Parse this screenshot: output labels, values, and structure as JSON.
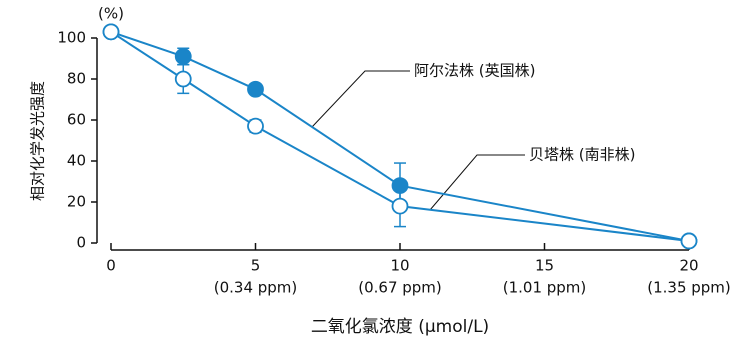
{
  "chart_data": {
    "type": "line",
    "y_unit": "(%)",
    "y_label": "相对化学发光强度",
    "x_label": "二氧化氯浓度 (μmol/L)",
    "x": [
      0,
      2.5,
      5,
      10,
      20
    ],
    "series": [
      {
        "name": "阿尔法株 (英国株)",
        "color": "#1a85c8",
        "marker": "filled",
        "values": [
          103,
          91,
          75,
          28,
          1
        ],
        "errors": [
          null,
          4,
          null,
          11,
          null
        ]
      },
      {
        "name": "贝塔株 (南非株)",
        "color": "#1a85c8",
        "marker": "open",
        "values": [
          103,
          80,
          57,
          18,
          1
        ],
        "errors": [
          null,
          7,
          3,
          10,
          null
        ]
      }
    ],
    "xlim": [
      0,
      20
    ],
    "xticks": [
      0,
      5,
      10,
      15,
      20
    ],
    "xtick_sublabels": [
      null,
      "(0.34 ppm)",
      "(0.67 ppm)",
      "(1.01 ppm)",
      "(1.35 ppm)"
    ],
    "ylim": [
      0,
      100
    ],
    "yticks": [
      0,
      20,
      40,
      60,
      80,
      100
    ]
  }
}
